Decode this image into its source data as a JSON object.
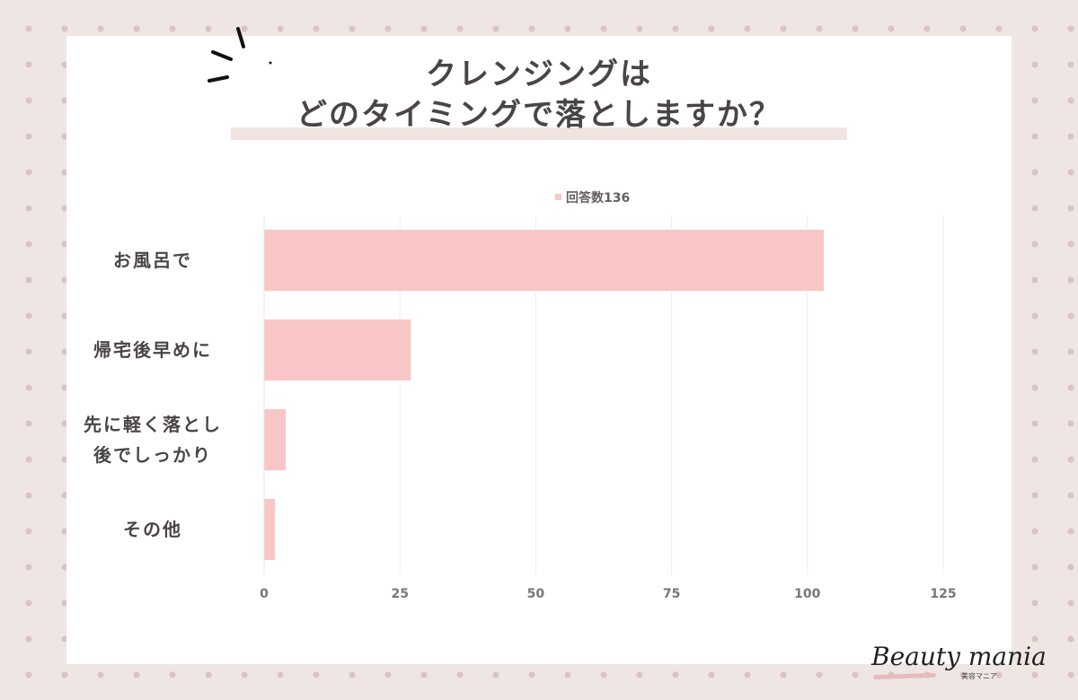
{
  "title_lines": [
    "クレンジングは",
    "どのタイミングで落としますか？"
  ],
  "legend": {
    "label": "回答数136",
    "color": "#f8c6c6"
  },
  "brand": {
    "name": "Beauty mania",
    "sub": "美容マニア"
  },
  "chart_data": {
    "type": "bar",
    "orientation": "horizontal",
    "categories": [
      [
        "お風呂で"
      ],
      [
        "帰宅後早めに"
      ],
      [
        "先に軽く落とし",
        "後でしっかり"
      ],
      [
        "その他"
      ]
    ],
    "series": [
      {
        "name": "回答数136",
        "values": [
          103,
          27,
          4,
          2
        ],
        "color": "#f8c6c6"
      }
    ],
    "xlim": [
      0,
      125
    ],
    "xticks": [
      0,
      25,
      50,
      75,
      100,
      125
    ],
    "grid": true,
    "legend_position": "top-center"
  }
}
